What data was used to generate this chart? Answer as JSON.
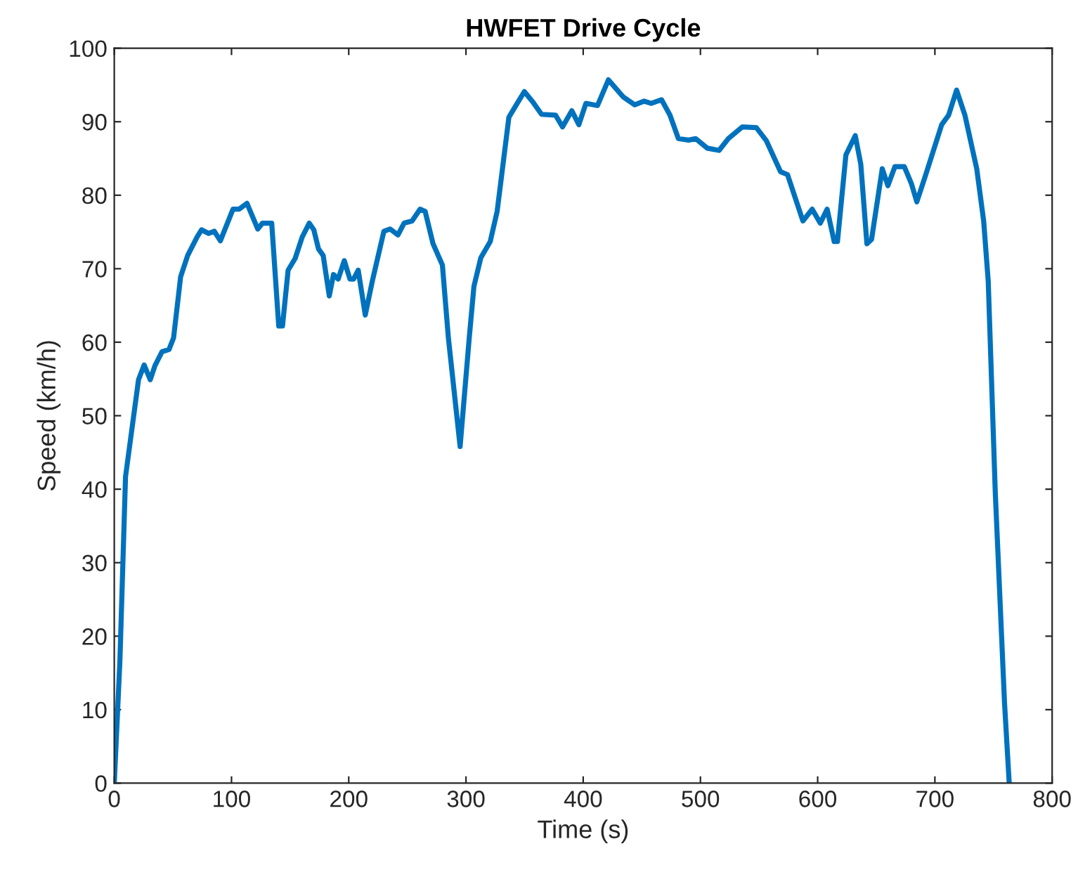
{
  "chart_data": {
    "type": "line",
    "title": "HWFET Drive Cycle",
    "xlabel": "Time (s)",
    "ylabel": "Speed (km/h)",
    "xlim": [
      0,
      800
    ],
    "ylim": [
      0,
      100
    ],
    "xticks": [
      0,
      100,
      200,
      300,
      400,
      500,
      600,
      700,
      800
    ],
    "yticks": [
      0,
      10,
      20,
      30,
      40,
      50,
      60,
      70,
      80,
      90,
      100
    ],
    "grid": false,
    "line_style": "solid",
    "series": [
      {
        "color": "#0072bd",
        "x": [
          0,
          4.8,
          9.6,
          20.7,
          25.5,
          30.7,
          34.7,
          40.7,
          46.7,
          50.6,
          56.6,
          62.6,
          70.6,
          74.5,
          80.5,
          85.3,
          90.5,
          101.3,
          106.5,
          113.2,
          122.4,
          126.4,
          134.3,
          140.3,
          143.5,
          148.3,
          154.3,
          160.3,
          166.3,
          170.2,
          174.2,
          178.2,
          183.4,
          187.0,
          191.0,
          196.2,
          201.0,
          204.2,
          208.1,
          214.1,
          220.1,
          230.0,
          235.3,
          242.0,
          247.2,
          254.0,
          260.8,
          265.2,
          271.9,
          279.9,
          285.0,
          295,
          302.8,
          306.8,
          312.7,
          320.7,
          326.6,
          336.6,
          342.6,
          349.8,
          356.5,
          364.5,
          376.4,
          382.4,
          390.3,
          396.3,
          402.3,
          412.2,
          421.5,
          434.0,
          444.0,
          452.0,
          458.0,
          466.8,
          474.0,
          481.2,
          489.9,
          495.9,
          505.9,
          515.9,
          523.8,
          535.8,
          547.7,
          556.3,
          568.3,
          574.3,
          587.4,
          595.3,
          602.2,
          608.1,
          614.1,
          616.9,
          624.1,
          632.1,
          636.8,
          642.0,
          646.0,
          655.1,
          659.9,
          665.9,
          673.9,
          679.9,
          684.6,
          691.8,
          705.8,
          711.7,
          718.5,
          725.6,
          735.7,
          741.6,
          745.5,
          751.5,
          759.4,
          763.4
        ],
        "values": [
          0,
          16.6,
          41.7,
          54.9,
          56.9,
          54.9,
          56.8,
          58.7,
          59.0,
          60.6,
          68.9,
          71.8,
          74.3,
          75.3,
          74.8,
          75.1,
          73.8,
          78.1,
          78.1,
          78.9,
          75.4,
          76.2,
          76.2,
          62.2,
          62.2,
          69.8,
          71.4,
          74.3,
          76.2,
          75.3,
          72.7,
          71.8,
          66.3,
          69.2,
          68.6,
          71.1,
          68.6,
          68.6,
          69.8,
          63.7,
          68.3,
          75.1,
          75.4,
          74.6,
          76.2,
          76.5,
          78.1,
          77.8,
          73.4,
          70.5,
          60.6,
          45.8,
          60.6,
          67.6,
          71.5,
          73.7,
          77.8,
          90.6,
          92.2,
          94.1,
          92.8,
          91.0,
          90.9,
          89.3,
          91.5,
          89.6,
          92.5,
          92.2,
          95.7,
          93.4,
          92.3,
          92.8,
          92.5,
          93.0,
          90.9,
          87.7,
          87.5,
          87.7,
          86.4,
          86.1,
          87.7,
          89.3,
          89.2,
          87.4,
          83.2,
          82.8,
          76.5,
          78.1,
          76.2,
          78.1,
          73.7,
          73.7,
          85.5,
          88.1,
          84.2,
          73.4,
          74.0,
          83.6,
          81.3,
          83.9,
          83.9,
          81.6,
          79.1,
          82.6,
          89.6,
          90.9,
          94.3,
          90.9,
          83.6,
          76.5,
          68.3,
          39.6,
          10.9,
          0
        ]
      }
    ]
  }
}
